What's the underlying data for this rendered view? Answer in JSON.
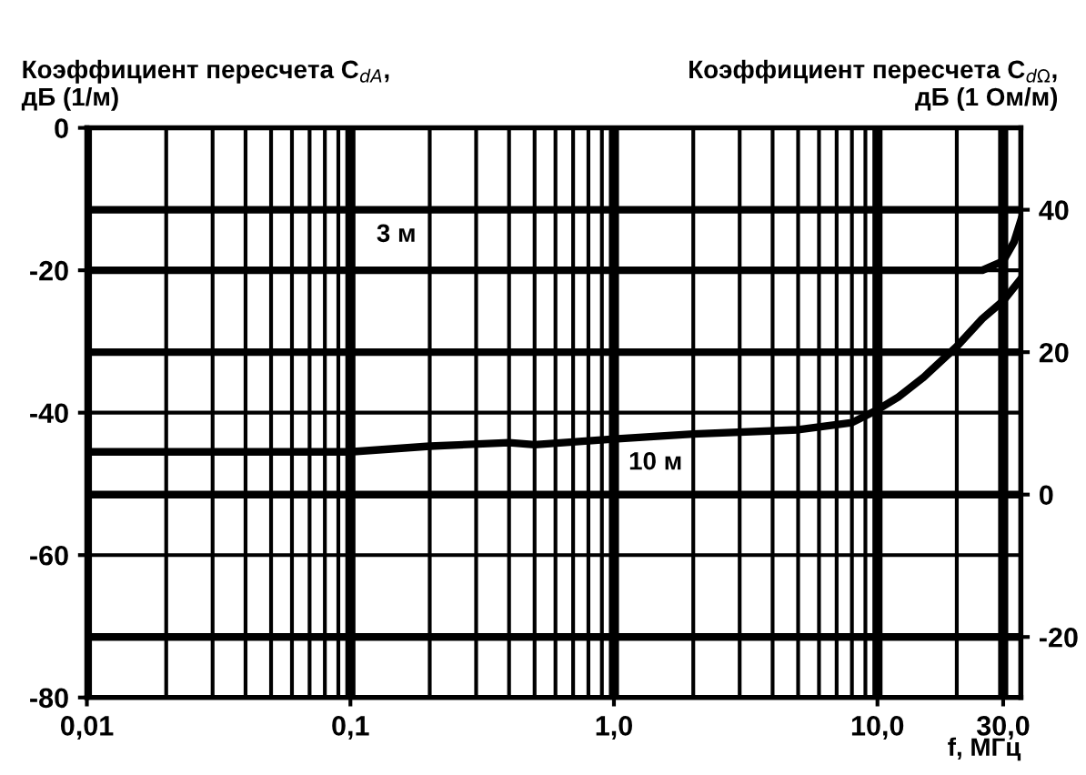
{
  "chart_data": {
    "type": "line",
    "ylabel": "Коэффициент пересчета C$_{dA}$,\nдБ (1/м)",
    "y2label": "Коэффициент пересчета C$_{dΩ}$,\nдБ (1 Ом/м)",
    "xlabel": "f, МГц",
    "log": "x",
    "xlim": [
      0.01,
      35
    ],
    "xticks": [
      {
        "value": 0.01,
        "label": "0,01"
      },
      {
        "value": 0.1,
        "label": "0,1"
      },
      {
        "value": 1,
        "label": "1,0"
      },
      {
        "value": 10,
        "label": "10,0"
      },
      {
        "value": 30,
        "label": "30,0"
      }
    ],
    "ylim": [
      -80,
      0
    ],
    "yticks": [
      0,
      -20,
      -40,
      -60,
      -80
    ],
    "y2lim": [
      -28.5,
      51.5
    ],
    "y2ticks": [
      -20,
      0,
      20,
      40
    ],
    "grid": true,
    "marker": "none",
    "line_style": "solid",
    "series": [
      {
        "color": "#000000",
        "x": [
          0.01,
          20,
          25,
          30,
          33,
          35
        ],
        "values": [
          -20,
          -20,
          -20,
          -18.7,
          -16,
          -13
        ]
      },
      {
        "color": "#000000",
        "x": [
          0.01,
          0.1,
          0.2,
          0.4,
          0.5,
          1,
          2,
          5,
          8,
          10,
          12,
          15,
          20,
          25,
          30,
          35
        ],
        "values": [
          -45.5,
          -45.5,
          -44.7,
          -44.2,
          -44.5,
          -43.7,
          -43,
          -42.4,
          -41.4,
          -39.6,
          -37.8,
          -35,
          -30.7,
          -26.8,
          -24.3,
          -21.2
        ]
      }
    ],
    "annotations": [
      "3 м",
      "10 м"
    ]
  }
}
